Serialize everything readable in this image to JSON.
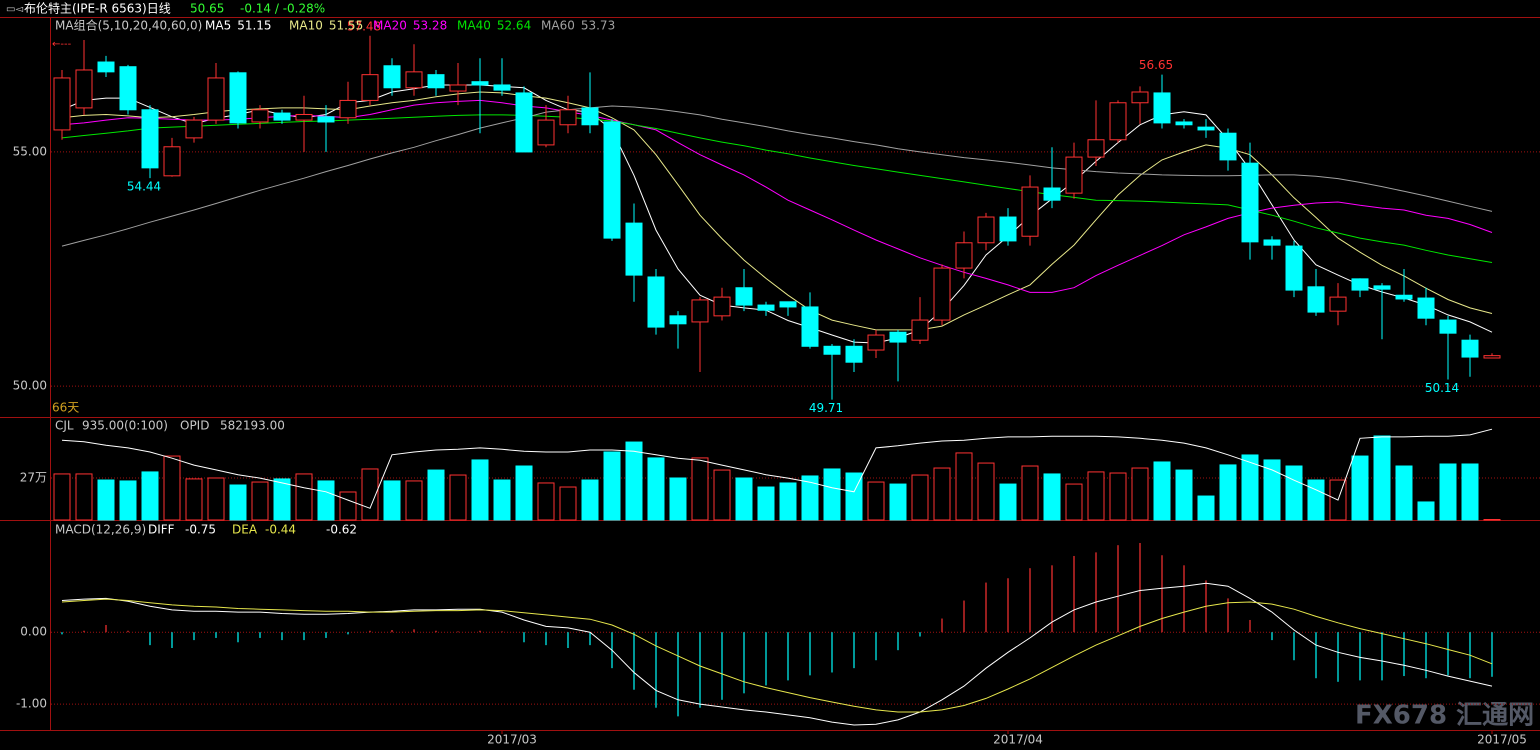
{
  "watermark": "FX678 汇通网",
  "chart_data": [
    {
      "type": "candlestick",
      "title": "布伦特主(IPE-R 6563)日线",
      "change": "-0.14 / -0.28%",
      "indicator": "MA组合(5,10,20,40,60,0)",
      "days_label": "66天",
      "up_color": "#ff3232",
      "down_color": "#00ffff",
      "open": [
        55.47,
        55.94,
        56.92,
        56.82,
        55.9,
        54.49,
        55.3,
        55.68,
        56.69,
        55.64,
        55.83,
        55.68,
        55.75,
        55.73,
        56.1,
        56.84,
        56.37,
        56.65,
        56.3,
        56.5,
        56.43,
        56.26,
        55.15,
        55.58,
        55.94,
        55.64,
        53.48,
        52.33,
        51.5,
        51.37,
        51.5,
        52.1,
        51.73,
        51.8,
        51.69,
        50.85,
        50.85,
        50.77,
        51.15,
        50.98,
        51.41,
        52.52,
        53.06,
        53.61,
        53.2,
        54.23,
        54.12,
        54.89,
        55.26,
        56.05,
        56.26,
        55.64,
        55.53,
        55.4,
        54.76,
        53.12,
        52.99,
        52.12,
        51.6,
        52.29,
        52.14,
        51.94,
        51.88,
        51.41,
        50.98,
        50.6
      ],
      "high": [
        56.75,
        57.39,
        57.05,
        56.86,
        56.0,
        55.3,
        55.75,
        56.9,
        56.72,
        56.0,
        55.9,
        56.2,
        56.0,
        56.5,
        57.48,
        57.0,
        57.3,
        56.75,
        56.9,
        57.0,
        57.0,
        56.4,
        56.0,
        56.2,
        56.7,
        55.7,
        53.9,
        52.5,
        51.6,
        51.9,
        52.1,
        52.5,
        51.8,
        51.8,
        52.0,
        50.9,
        51.0,
        51.2,
        51.2,
        51.9,
        52.6,
        53.3,
        53.7,
        53.8,
        54.5,
        55.1,
        55.2,
        56.1,
        56.1,
        56.4,
        56.65,
        55.7,
        55.7,
        55.5,
        55.2,
        53.2,
        53.1,
        52.5,
        52.2,
        52.3,
        52.2,
        52.5,
        52.1,
        51.5,
        51.1,
        50.7
      ],
      "low": [
        55.26,
        55.79,
        56.6,
        55.8,
        54.44,
        54.47,
        55.2,
        55.6,
        55.5,
        55.5,
        55.6,
        55.0,
        55.0,
        55.6,
        56.0,
        56.2,
        56.2,
        56.2,
        56.0,
        55.4,
        56.2,
        55.0,
        55.1,
        55.4,
        55.4,
        53.1,
        51.8,
        51.1,
        50.8,
        50.3,
        51.4,
        51.6,
        51.5,
        51.5,
        50.8,
        49.71,
        50.3,
        50.6,
        50.1,
        50.9,
        51.3,
        52.3,
        52.9,
        53.0,
        53.0,
        53.8,
        54.0,
        54.7,
        55.2,
        55.6,
        55.5,
        55.5,
        55.3,
        54.6,
        52.7,
        52.7,
        51.9,
        51.5,
        51.3,
        51.9,
        51.0,
        51.8,
        51.3,
        50.14,
        50.2,
        50.6
      ],
      "close": [
        56.58,
        56.75,
        56.71,
        55.9,
        54.66,
        55.11,
        55.68,
        56.58,
        55.62,
        55.9,
        55.68,
        55.8,
        55.64,
        56.1,
        56.65,
        56.37,
        56.71,
        56.37,
        56.43,
        56.43,
        56.32,
        55.0,
        55.68,
        55.9,
        55.58,
        53.16,
        52.37,
        51.26,
        51.33,
        51.84,
        51.9,
        51.73,
        51.62,
        51.69,
        50.85,
        50.68,
        50.51,
        51.09,
        50.94,
        51.41,
        52.52,
        53.06,
        53.61,
        53.1,
        54.25,
        53.97,
        54.89,
        55.26,
        56.05,
        56.28,
        55.62,
        55.58,
        55.47,
        54.83,
        53.08,
        53.01,
        52.05,
        51.58,
        51.9,
        52.05,
        52.07,
        51.86,
        51.45,
        51.13,
        50.62,
        50.65
      ],
      "series": [
        {
          "name": "MA5",
          "color": "#ffffff",
          "values": [
            55.9,
            56.1,
            56.15,
            56.15,
            55.95,
            55.75,
            55.6,
            55.72,
            55.8,
            55.9,
            55.8,
            55.73,
            55.8,
            56.05,
            56.1,
            56.28,
            56.35,
            56.43,
            56.43,
            56.43,
            56.4,
            56.37,
            56.1,
            55.9,
            55.85,
            55.47,
            54.5,
            53.33,
            52.5,
            51.94,
            51.73,
            51.67,
            51.62,
            51.4,
            51.25,
            51.09,
            50.94,
            50.92,
            51.03,
            51.2,
            51.62,
            52.15,
            52.8,
            53.2,
            53.63,
            54.0,
            54.37,
            54.8,
            55.2,
            55.58,
            55.79,
            55.86,
            55.79,
            55.26,
            54.62,
            53.87,
            53.12,
            52.59,
            52.37,
            52.16,
            52.01,
            51.88,
            51.73,
            51.52,
            51.37,
            51.15
          ]
        },
        {
          "name": "MA10",
          "color": "#e8e88a",
          "values": [
            55.73,
            55.78,
            55.8,
            55.77,
            55.73,
            55.75,
            55.8,
            55.86,
            55.9,
            55.92,
            55.94,
            55.94,
            55.92,
            55.9,
            55.98,
            56.05,
            56.1,
            56.18,
            56.24,
            56.28,
            56.26,
            56.2,
            56.15,
            56.05,
            55.94,
            55.73,
            55.47,
            54.94,
            54.3,
            53.65,
            53.15,
            52.69,
            52.3,
            51.94,
            51.62,
            51.41,
            51.3,
            51.2,
            51.2,
            51.2,
            51.28,
            51.52,
            51.73,
            51.95,
            52.16,
            52.6,
            53.01,
            53.55,
            54.08,
            54.5,
            54.83,
            55.0,
            55.15,
            55.08,
            54.94,
            54.51,
            54.02,
            53.6,
            53.16,
            52.86,
            52.58,
            52.35,
            52.09,
            51.85,
            51.67,
            51.55
          ]
        },
        {
          "name": "MA20",
          "color": "#ff00ff",
          "values": [
            55.58,
            55.62,
            55.68,
            55.73,
            55.72,
            55.7,
            55.68,
            55.68,
            55.7,
            55.73,
            55.76,
            55.78,
            55.76,
            55.73,
            55.8,
            55.9,
            56.0,
            56.05,
            56.08,
            56.1,
            56.05,
            55.98,
            55.94,
            55.86,
            55.78,
            55.68,
            55.58,
            55.47,
            55.2,
            54.94,
            54.72,
            54.51,
            54.25,
            53.97,
            53.76,
            53.55,
            53.33,
            53.12,
            52.93,
            52.74,
            52.58,
            52.43,
            52.3,
            52.16,
            52.0,
            52.0,
            52.1,
            52.36,
            52.58,
            52.79,
            53.0,
            53.23,
            53.4,
            53.58,
            53.7,
            53.8,
            53.86,
            53.91,
            53.93,
            53.86,
            53.8,
            53.76,
            53.65,
            53.58,
            53.45,
            53.28
          ]
        },
        {
          "name": "MA40",
          "color": "#00e600",
          "values": [
            55.3,
            55.35,
            55.4,
            55.45,
            55.51,
            55.53,
            55.55,
            55.57,
            55.59,
            55.61,
            55.63,
            55.65,
            55.66,
            55.68,
            55.7,
            55.72,
            55.74,
            55.76,
            55.78,
            55.79,
            55.79,
            55.78,
            55.76,
            55.74,
            55.7,
            55.66,
            55.58,
            55.5,
            55.4,
            55.3,
            55.21,
            55.13,
            55.04,
            54.96,
            54.87,
            54.79,
            54.71,
            54.64,
            54.57,
            54.5,
            54.43,
            54.36,
            54.29,
            54.22,
            54.15,
            54.09,
            54.03,
            53.97,
            53.96,
            53.95,
            53.93,
            53.91,
            53.89,
            53.87,
            53.76,
            53.65,
            53.52,
            53.38,
            53.27,
            53.16,
            53.08,
            53.01,
            52.9,
            52.8,
            52.72,
            52.64
          ]
        },
        {
          "name": "MA60",
          "color": "#a0a0a0",
          "values": [
            52.99,
            53.11,
            53.23,
            53.36,
            53.5,
            53.63,
            53.76,
            53.9,
            54.04,
            54.18,
            54.31,
            54.44,
            54.58,
            54.71,
            54.85,
            54.98,
            55.1,
            55.24,
            55.37,
            55.51,
            55.62,
            55.73,
            55.85,
            55.9,
            55.94,
            55.98,
            55.96,
            55.92,
            55.86,
            55.79,
            55.7,
            55.62,
            55.54,
            55.45,
            55.37,
            55.3,
            55.22,
            55.15,
            55.07,
            55.0,
            54.94,
            54.88,
            54.83,
            54.78,
            54.72,
            54.66,
            54.62,
            54.58,
            54.55,
            54.53,
            54.51,
            54.5,
            54.49,
            54.49,
            54.5,
            54.51,
            54.51,
            54.48,
            54.43,
            54.35,
            54.26,
            54.16,
            54.06,
            53.95,
            53.84,
            53.73
          ]
        }
      ],
      "annotations": [
        57.48,
        54.44,
        56.65,
        49.71,
        50.14
      ],
      "ylim": [
        49.34,
        57.86
      ],
      "yticks": [
        {
          "value": 55,
          "label": "55.00"
        },
        {
          "value": 50,
          "label": "50.00"
        }
      ],
      "grid": true
    },
    {
      "type": "bar",
      "name": "CJL",
      "legend_value": "935.00(0:100)",
      "values": [
        296000,
        296000,
        257000,
        251000,
        309000,
        411000,
        264000,
        270000,
        225000,
        244000,
        264000,
        296000,
        251000,
        180000,
        328000,
        251000,
        251000,
        321000,
        289000,
        386000,
        257000,
        347000,
        238000,
        212000,
        257000,
        437000,
        501000,
        399000,
        270000,
        399000,
        321000,
        270000,
        212000,
        238000,
        283000,
        328000,
        302000,
        244000,
        231000,
        289000,
        334000,
        431000,
        366000,
        231000,
        347000,
        296000,
        231000,
        309000,
        302000,
        334000,
        373000,
        321000,
        154000,
        354000,
        418000,
        386000,
        347000,
        257000,
        257000,
        411000,
        540000,
        347000,
        116000,
        360000,
        360000,
        935
      ],
      "series": [
        {
          "name": "OPID",
          "legend_value": "582193.00",
          "color": "#ffffff",
          "axis": "y2",
          "values": [
            566000,
            564000,
            559000,
            555000,
            549000,
            540000,
            530000,
            523000,
            516000,
            511000,
            504000,
            497000,
            491000,
            479000,
            467000,
            545000,
            549000,
            552000,
            553000,
            555000,
            553000,
            550000,
            549000,
            549000,
            552000,
            552000,
            550000,
            545000,
            540000,
            537000,
            530000,
            523000,
            516000,
            511000,
            505000,
            497000,
            491000,
            555000,
            558000,
            562000,
            565000,
            566000,
            569000,
            571000,
            571000,
            572000,
            572000,
            572000,
            571000,
            569000,
            566000,
            562000,
            555000,
            545000,
            534000,
            523000,
            508000,
            494000,
            479000,
            569000,
            571000,
            571000,
            572000,
            572000,
            574000,
            582193
          ]
        }
      ],
      "ylim": [
        0,
        662000
      ],
      "yticks": [
        {
          "value": 270000,
          "label": "27万"
        }
      ],
      "y2lim": [
        450000,
        600000
      ],
      "grid": true
    },
    {
      "type": "macd",
      "title": "MACD(12,26,9)",
      "up_color": "#ff3232",
      "down_color": "#00ffff",
      "values": [
        -0.03,
        0.02,
        0.1,
        0.02,
        -0.18,
        -0.22,
        -0.11,
        -0.08,
        -0.14,
        -0.08,
        -0.11,
        -0.11,
        -0.08,
        -0.03,
        0.02,
        0.03,
        0.04,
        0.02,
        0.01,
        0.02,
        0.01,
        -0.14,
        -0.18,
        -0.22,
        -0.18,
        -0.5,
        -0.8,
        -1.05,
        -1.17,
        -1.05,
        -0.94,
        -0.85,
        -0.74,
        -0.67,
        -0.6,
        -0.56,
        -0.5,
        -0.39,
        -0.25,
        -0.06,
        0.19,
        0.44,
        0.69,
        0.75,
        0.89,
        0.93,
        1.06,
        1.11,
        1.21,
        1.24,
        1.07,
        0.93,
        0.72,
        0.47,
        0.17,
        -0.11,
        -0.39,
        -0.64,
        -0.69,
        -0.67,
        -0.67,
        -0.61,
        -0.64,
        -0.6,
        -0.64,
        -0.62
      ],
      "series": [
        {
          "name": "DIFF",
          "color": "#ffffff",
          "values": [
            0.44,
            0.46,
            0.47,
            0.43,
            0.36,
            0.31,
            0.29,
            0.29,
            0.28,
            0.28,
            0.26,
            0.25,
            0.25,
            0.26,
            0.28,
            0.29,
            0.31,
            0.31,
            0.32,
            0.32,
            0.28,
            0.17,
            0.08,
            0.06,
            0.0,
            -0.25,
            -0.56,
            -0.81,
            -0.94,
            -1.0,
            -1.04,
            -1.08,
            -1.11,
            -1.15,
            -1.19,
            -1.25,
            -1.29,
            -1.28,
            -1.22,
            -1.11,
            -0.94,
            -0.75,
            -0.5,
            -0.28,
            -0.08,
            0.14,
            0.31,
            0.42,
            0.5,
            0.58,
            0.61,
            0.64,
            0.68,
            0.64,
            0.47,
            0.28,
            0.03,
            -0.18,
            -0.28,
            -0.35,
            -0.4,
            -0.46,
            -0.53,
            -0.61,
            -0.68,
            -0.75
          ]
        },
        {
          "name": "DEA",
          "color": "#e6e64c",
          "values": [
            0.42,
            0.44,
            0.46,
            0.44,
            0.41,
            0.38,
            0.36,
            0.35,
            0.33,
            0.32,
            0.31,
            0.3,
            0.29,
            0.29,
            0.28,
            0.28,
            0.29,
            0.3,
            0.3,
            0.31,
            0.3,
            0.27,
            0.24,
            0.21,
            0.18,
            0.1,
            -0.03,
            -0.19,
            -0.33,
            -0.47,
            -0.58,
            -0.69,
            -0.77,
            -0.84,
            -0.91,
            -0.97,
            -1.03,
            -1.08,
            -1.11,
            -1.11,
            -1.08,
            -1.02,
            -0.92,
            -0.79,
            -0.65,
            -0.49,
            -0.33,
            -0.18,
            -0.05,
            0.08,
            0.19,
            0.28,
            0.36,
            0.41,
            0.42,
            0.39,
            0.32,
            0.22,
            0.13,
            0.05,
            -0.02,
            -0.09,
            -0.16,
            -0.24,
            -0.32,
            -0.44
          ]
        }
      ],
      "categories": [
        null,
        null,
        null,
        null,
        null,
        null,
        null,
        null,
        null,
        null,
        null,
        null,
        null,
        null,
        null,
        null,
        null,
        null,
        null,
        null,
        "2017/03",
        null,
        null,
        null,
        null,
        null,
        null,
        null,
        null,
        null,
        null,
        null,
        null,
        null,
        null,
        null,
        null,
        null,
        null,
        null,
        null,
        null,
        null,
        "2017/04",
        null,
        null,
        null,
        null,
        null,
        null,
        null,
        null,
        null,
        null,
        null,
        null,
        null,
        null,
        null,
        null,
        null,
        null,
        null,
        null,
        null,
        "2017/05"
      ],
      "ylim": [
        -1.36,
        1.56
      ],
      "yticks": [
        {
          "value": 0,
          "label": "0.00"
        },
        {
          "value": -1,
          "label": "-1.00"
        }
      ],
      "grid": true
    }
  ]
}
